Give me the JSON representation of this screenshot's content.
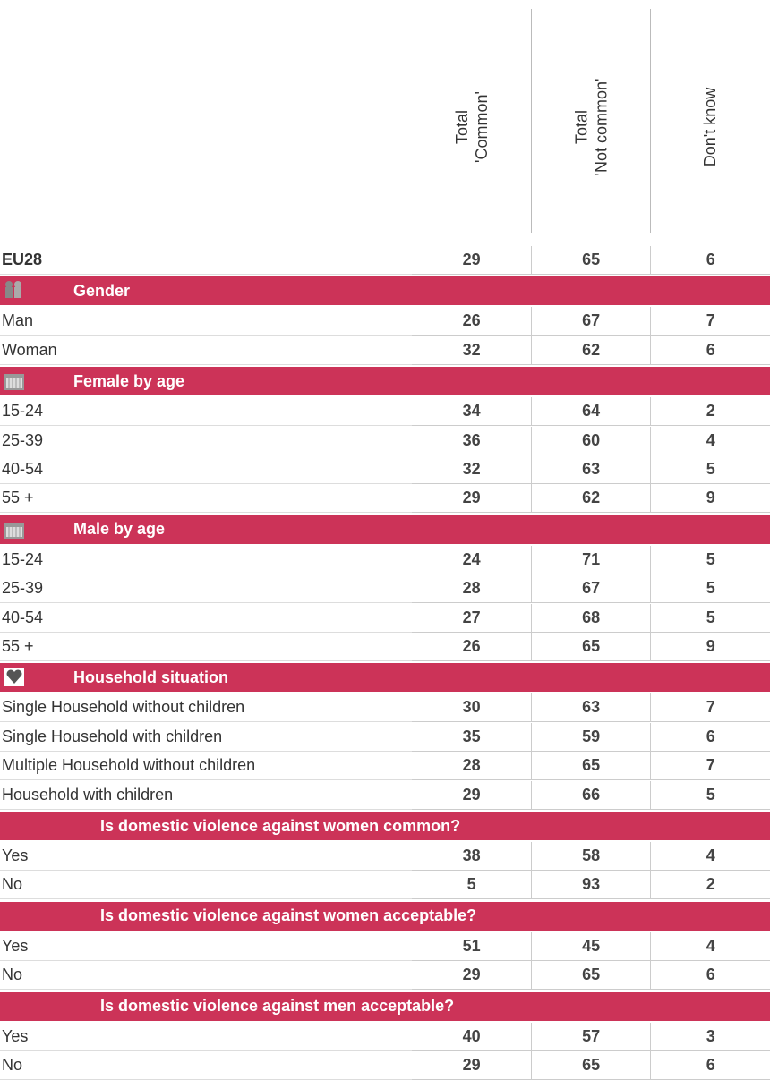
{
  "header": {
    "columns": [
      "Total\n'Common'",
      "Total\n'Not common'",
      "Don't know"
    ]
  },
  "total": {
    "label": "EU28",
    "values": [
      29,
      65,
      6
    ]
  },
  "sections": [
    {
      "title": "Gender",
      "rows": [
        {
          "label": "Man",
          "values": [
            26,
            67,
            7
          ]
        },
        {
          "label": "Woman",
          "values": [
            32,
            62,
            6
          ]
        }
      ]
    },
    {
      "title": "Female by age",
      "rows": [
        {
          "label": "15-24",
          "values": [
            34,
            64,
            2
          ]
        },
        {
          "label": "25-39",
          "values": [
            36,
            60,
            4
          ]
        },
        {
          "label": "40-54",
          "values": [
            32,
            63,
            5
          ]
        },
        {
          "label": "55 +",
          "values": [
            29,
            62,
            9
          ]
        }
      ]
    },
    {
      "title": "Male by age",
      "rows": [
        {
          "label": "15-24",
          "values": [
            24,
            71,
            5
          ]
        },
        {
          "label": "25-39",
          "values": [
            28,
            67,
            5
          ]
        },
        {
          "label": "40-54",
          "values": [
            27,
            68,
            5
          ]
        },
        {
          "label": "55 +",
          "values": [
            26,
            65,
            9
          ]
        }
      ]
    },
    {
      "title": "Household situation",
      "rows": [
        {
          "label": "Single Household without children",
          "values": [
            30,
            63,
            7
          ]
        },
        {
          "label": "Single Household with children",
          "values": [
            35,
            59,
            6
          ]
        },
        {
          "label": "Multiple Household without children",
          "values": [
            28,
            65,
            7
          ]
        },
        {
          "label": "Household with children",
          "values": [
            29,
            66,
            5
          ]
        }
      ]
    },
    {
      "title": "Is domestic violence against women common?",
      "rows": [
        {
          "label": "Yes",
          "values": [
            38,
            58,
            4
          ]
        },
        {
          "label": "No",
          "values": [
            5,
            93,
            2
          ]
        }
      ]
    },
    {
      "title": "Is domestic violence against women acceptable?",
      "rows": [
        {
          "label": "Yes",
          "values": [
            51,
            45,
            4
          ]
        },
        {
          "label": "No",
          "values": [
            29,
            65,
            6
          ]
        }
      ]
    },
    {
      "title": "Is domestic violence against men acceptable?",
      "rows": [
        {
          "label": "Yes",
          "values": [
            40,
            57,
            3
          ]
        },
        {
          "label": "No",
          "values": [
            29,
            65,
            6
          ]
        }
      ]
    }
  ]
}
